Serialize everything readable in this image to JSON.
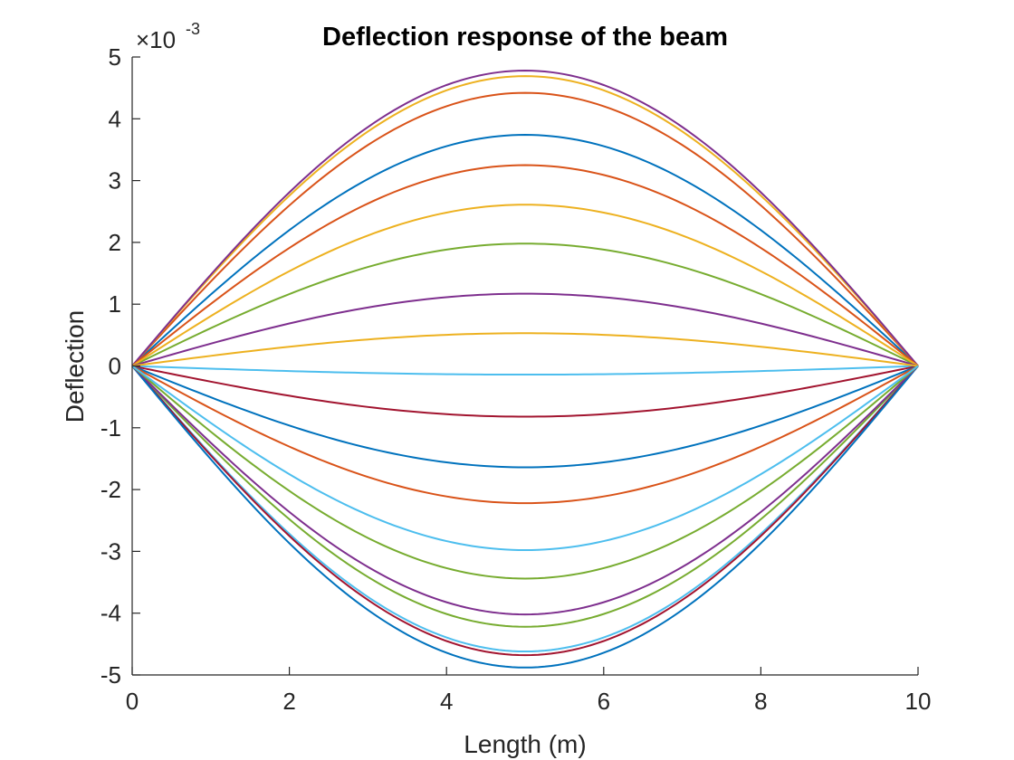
{
  "chart_data": {
    "type": "line",
    "title": "Deflection response of the beam",
    "xlabel": "Length (m)",
    "ylabel": "Deflection",
    "xlim": [
      0,
      10
    ],
    "ylim": [
      -0.005,
      0.005
    ],
    "xticks": [
      0,
      2,
      4,
      6,
      8,
      10
    ],
    "xtick_labels": [
      "0",
      "2",
      "4",
      "6",
      "8",
      "10"
    ],
    "yticks": [
      -5,
      -4,
      -3,
      -2,
      -1,
      0,
      1,
      2,
      3,
      4,
      5
    ],
    "ytick_labels": [
      "-5",
      "-4",
      "-3",
      "-2",
      "-1",
      "0",
      "1",
      "2",
      "3",
      "4",
      "5"
    ],
    "y_exponent": {
      "base": "×10",
      "power": "-3"
    },
    "grid": false,
    "legend": false,
    "curve_shape": "sin(pi*x/10)",
    "x": [
      0,
      1,
      2,
      3,
      4,
      5,
      6,
      7,
      8,
      9,
      10
    ],
    "series": [
      {
        "color": "#0072BD",
        "midspan": 0.00374,
        "values": [
          0,
          0.001156,
          0.002198,
          0.003026,
          0.003557,
          0.00374,
          0.003557,
          0.003026,
          0.002198,
          0.001156,
          0
        ]
      },
      {
        "color": "#D95319",
        "midspan": 0.00442,
        "values": [
          0,
          0.001366,
          0.002598,
          0.003576,
          0.004204,
          0.00442,
          0.004204,
          0.003576,
          0.002598,
          0.001366,
          0
        ]
      },
      {
        "color": "#EDB120",
        "midspan": 0.00469,
        "values": [
          0,
          0.001449,
          0.002757,
          0.003794,
          0.00446,
          0.00469,
          0.00446,
          0.003794,
          0.002757,
          0.001449,
          0
        ]
      },
      {
        "color": "#7E2F8E",
        "midspan": 0.00478,
        "values": [
          0,
          0.001477,
          0.00281,
          0.003867,
          0.004546,
          0.00478,
          0.004546,
          0.003867,
          0.00281,
          0.001477,
          0
        ]
      },
      {
        "color": "#77AC30",
        "midspan": 0.00198,
        "values": [
          0,
          0.000612,
          0.001164,
          0.001602,
          0.001883,
          0.00198,
          0.001883,
          0.001602,
          0.001164,
          0.000612,
          0
        ]
      },
      {
        "color": "#4DBEEE",
        "midspan": -0.00014,
        "values": [
          0,
          -4.3e-05,
          -8.2e-05,
          -0.000113,
          -0.000133,
          -0.00014,
          -0.000133,
          -0.000113,
          -8.2e-05,
          -4.3e-05,
          0
        ]
      },
      {
        "color": "#A2142F",
        "midspan": -0.00082,
        "values": [
          0,
          -0.000253,
          -0.000482,
          -0.000663,
          -0.00078,
          -0.00082,
          -0.00078,
          -0.000663,
          -0.000482,
          -0.000253,
          0
        ]
      },
      {
        "color": "#0072BD",
        "midspan": -0.00164,
        "values": [
          0,
          -0.000507,
          -0.000964,
          -0.001327,
          -0.00156,
          -0.00164,
          -0.00156,
          -0.001327,
          -0.000964,
          -0.000507,
          0
        ]
      },
      {
        "color": "#D95319",
        "midspan": 0.00325,
        "values": [
          0,
          0.001004,
          0.00191,
          0.002629,
          0.003091,
          0.00325,
          0.003091,
          0.002629,
          0.00191,
          0.001004,
          0
        ]
      },
      {
        "color": "#EDB120",
        "midspan": 0.00261,
        "values": [
          0,
          0.000807,
          0.001534,
          0.002112,
          0.002482,
          0.00261,
          0.002482,
          0.002112,
          0.001534,
          0.000807,
          0
        ]
      },
      {
        "color": "#7E2F8E",
        "midspan": 0.00117,
        "values": [
          0,
          0.000362,
          0.000688,
          0.000947,
          0.001113,
          0.00117,
          0.001113,
          0.000947,
          0.000688,
          0.000362,
          0
        ]
      },
      {
        "color": "#77AC30",
        "midspan": -0.00422,
        "values": [
          0,
          -0.001304,
          -0.00248,
          -0.003414,
          -0.004013,
          -0.00422,
          -0.004013,
          -0.003414,
          -0.00248,
          -0.001304,
          0
        ]
      },
      {
        "color": "#4DBEEE",
        "midspan": -0.00462,
        "values": [
          0,
          -0.001428,
          -0.002716,
          -0.003738,
          -0.004394,
          -0.00462,
          -0.004394,
          -0.003738,
          -0.002716,
          -0.001428,
          0
        ]
      },
      {
        "color": "#A2142F",
        "midspan": -0.00468,
        "values": [
          0,
          -0.001446,
          -0.002751,
          -0.003786,
          -0.004451,
          -0.00468,
          -0.004451,
          -0.003786,
          -0.002751,
          -0.001446,
          0
        ]
      },
      {
        "color": "#0072BD",
        "midspan": -0.00488,
        "values": [
          0,
          -0.001508,
          -0.002868,
          -0.003948,
          -0.004641,
          -0.00488,
          -0.004641,
          -0.003948,
          -0.002868,
          -0.001508,
          0
        ]
      },
      {
        "color": "#D95319",
        "midspan": -0.00222,
        "values": [
          0,
          -0.000686,
          -0.001305,
          -0.001796,
          -0.002111,
          -0.00222,
          -0.002111,
          -0.001796,
          -0.001305,
          -0.000686,
          0
        ]
      },
      {
        "color": "#EDB120",
        "midspan": 0.00053,
        "values": [
          0,
          0.000164,
          0.000312,
          0.000429,
          0.000504,
          0.00053,
          0.000504,
          0.000429,
          0.000312,
          0.000164,
          0
        ]
      },
      {
        "color": "#7E2F8E",
        "midspan": -0.00402,
        "values": [
          0,
          -0.001242,
          -0.002363,
          -0.003252,
          -0.003823,
          -0.00402,
          -0.003823,
          -0.003252,
          -0.002363,
          -0.001242,
          0
        ]
      },
      {
        "color": "#77AC30",
        "midspan": -0.00344,
        "values": [
          0,
          -0.001063,
          -0.002022,
          -0.002783,
          -0.003272,
          -0.00344,
          -0.003272,
          -0.002783,
          -0.002022,
          -0.001063,
          0
        ]
      },
      {
        "color": "#4DBEEE",
        "midspan": -0.00298,
        "values": [
          0,
          -0.000921,
          -0.001752,
          -0.002411,
          -0.002834,
          -0.00298,
          -0.002834,
          -0.002411,
          -0.001752,
          -0.000921,
          0
        ]
      }
    ]
  }
}
